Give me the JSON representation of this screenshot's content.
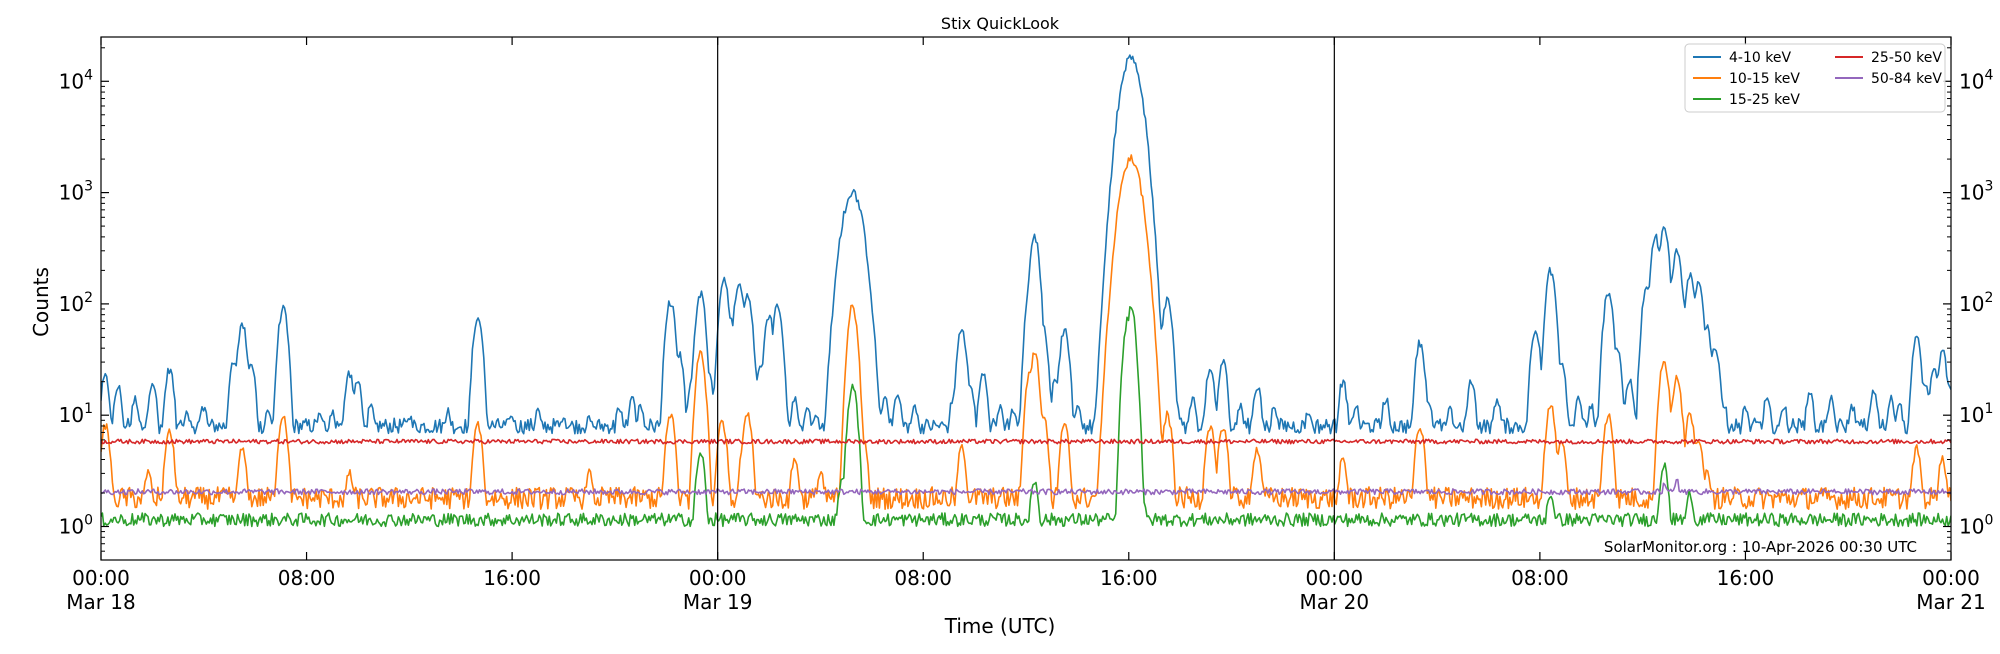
{
  "chart_data": {
    "type": "line",
    "title": "Stix QuickLook",
    "xlabel": "Time (UTC)",
    "ylabel": "Counts",
    "yscale": "log",
    "ylim": [
      0.5,
      25000
    ],
    "xlim": [
      "2026-03-18T00:00",
      "2026-03-21T00:00"
    ],
    "x_ticks": [
      {
        "x": "2026-03-18T00:00",
        "line1": "00:00",
        "line2": "Mar 18"
      },
      {
        "x": "2026-03-18T08:00",
        "line1": "08:00",
        "line2": ""
      },
      {
        "x": "2026-03-18T16:00",
        "line1": "16:00",
        "line2": ""
      },
      {
        "x": "2026-03-19T00:00",
        "line1": "00:00",
        "line2": "Mar 19"
      },
      {
        "x": "2026-03-19T08:00",
        "line1": "08:00",
        "line2": ""
      },
      {
        "x": "2026-03-19T16:00",
        "line1": "16:00",
        "line2": ""
      },
      {
        "x": "2026-03-20T00:00",
        "line1": "00:00",
        "line2": "Mar 20"
      },
      {
        "x": "2026-03-20T08:00",
        "line1": "08:00",
        "line2": ""
      },
      {
        "x": "2026-03-20T16:00",
        "line1": "16:00",
        "line2": ""
      },
      {
        "x": "2026-03-21T00:00",
        "line1": "00:00",
        "line2": "Mar 21"
      }
    ],
    "y_ticks": [
      {
        "value": 1,
        "base": "10",
        "exp": "0"
      },
      {
        "value": 10,
        "base": "10",
        "exp": "1"
      },
      {
        "value": 100,
        "base": "10",
        "exp": "2"
      },
      {
        "value": 1000,
        "base": "10",
        "exp": "3"
      },
      {
        "value": 10000,
        "base": "10",
        "exp": "4"
      }
    ],
    "day_separators": [
      "2026-03-19T00:00",
      "2026-03-20T00:00"
    ],
    "legend_position": "top-right",
    "grid": false,
    "annotation": "SolarMonitor.org : 10-Apr-2026 00:30 UTC",
    "series": [
      {
        "name": "4-10 keV",
        "color": "#1f77b4",
        "baseline": 8,
        "noise": 0.07,
        "points": [
          [
            "2026-03-18T00:10",
            22
          ],
          [
            "2026-03-18T00:40",
            18
          ],
          [
            "2026-03-18T01:20",
            14
          ],
          [
            "2026-03-18T02:00",
            20
          ],
          [
            "2026-03-18T02:40",
            26
          ],
          [
            "2026-03-18T03:20",
            11
          ],
          [
            "2026-03-18T04:00",
            12
          ],
          [
            "2026-03-18T05:10",
            30
          ],
          [
            "2026-03-18T05:30",
            65
          ],
          [
            "2026-03-18T05:50",
            30
          ],
          [
            "2026-03-18T06:30",
            11
          ],
          [
            "2026-03-18T07:05",
            90
          ],
          [
            "2026-03-18T08:30",
            10
          ],
          [
            "2026-03-18T09:00",
            11
          ],
          [
            "2026-03-18T09:40",
            24
          ],
          [
            "2026-03-18T10:00",
            20
          ],
          [
            "2026-03-18T10:30",
            12
          ],
          [
            "2026-03-18T12:00",
            10
          ],
          [
            "2026-03-18T13:30",
            11
          ],
          [
            "2026-03-18T14:40",
            75
          ],
          [
            "2026-03-18T16:00",
            10
          ],
          [
            "2026-03-18T17:00",
            11
          ],
          [
            "2026-03-18T18:00",
            10
          ],
          [
            "2026-03-18T19:00",
            10
          ],
          [
            "2026-03-18T20:10",
            12
          ],
          [
            "2026-03-18T20:40",
            14
          ],
          [
            "2026-03-18T21:00",
            12
          ],
          [
            "2026-03-18T22:10",
            105
          ],
          [
            "2026-03-18T22:30",
            35
          ],
          [
            "2026-03-18T23:00",
            20
          ],
          [
            "2026-03-18T23:20",
            125
          ],
          [
            "2026-03-18T23:40",
            22
          ],
          [
            "2026-03-19T00:30",
            12
          ],
          [
            "2026-03-19T01:00",
            14
          ],
          [
            "2026-03-19T02:00",
            80
          ],
          [
            "2026-03-19T02:20",
            100
          ],
          [
            "2026-03-19T03:00",
            14
          ],
          [
            "2026-03-19T03:30",
            12
          ],
          [
            "2026-03-19T00:15",
            170
          ],
          [
            "2026-03-19T00:30",
            70
          ],
          [
            "2026-03-19T00:50",
            160
          ],
          [
            "2026-03-19T01:10",
            120
          ],
          [
            "2026-03-19T01:40",
            30
          ],
          [
            "2026-03-19T03:50",
            10
          ],
          [
            "2026-03-19T04:20",
            12
          ],
          [
            "2026-03-19T05:00",
            20
          ],
          [
            "2026-03-19T05:15",
            1000
          ],
          [
            "2026-03-19T05:40",
            40
          ],
          [
            "2026-03-19T06:30",
            14
          ],
          [
            "2026-03-19T07:00",
            16
          ],
          [
            "2026-03-19T07:40",
            12
          ],
          [
            "2026-03-19T09:10",
            14
          ],
          [
            "2026-03-19T09:30",
            60
          ],
          [
            "2026-03-19T09:50",
            18
          ],
          [
            "2026-03-19T10:20",
            25
          ],
          [
            "2026-03-19T11:00",
            12
          ],
          [
            "2026-03-19T11:30",
            11
          ],
          [
            "2026-03-19T12:10",
            140
          ],
          [
            "2026-03-19T12:20",
            400
          ],
          [
            "2026-03-19T12:40",
            60
          ],
          [
            "2026-03-19T13:10",
            22
          ],
          [
            "2026-03-19T13:30",
            60
          ],
          [
            "2026-03-19T14:00",
            12
          ],
          [
            "2026-03-19T15:00",
            16
          ],
          [
            "2026-03-19T15:50",
            2000
          ],
          [
            "2026-03-19T16:00",
            8000
          ],
          [
            "2026-03-19T16:05",
            16000
          ],
          [
            "2026-03-19T16:15",
            3000
          ],
          [
            "2026-03-19T16:30",
            300
          ],
          [
            "2026-03-19T16:50",
            150
          ],
          [
            "2026-03-19T17:10",
            40
          ],
          [
            "2026-03-19T17:30",
            110
          ],
          [
            "2026-03-19T17:50",
            14
          ],
          [
            "2026-03-19T18:30",
            14
          ],
          [
            "2026-03-19T19:10",
            25
          ],
          [
            "2026-03-19T19:40",
            30
          ],
          [
            "2026-03-19T20:20",
            12
          ],
          [
            "2026-03-19T21:00",
            18
          ],
          [
            "2026-03-19T21:40",
            12
          ],
          [
            "2026-03-19T23:00",
            11
          ],
          [
            "2026-03-20T00:20",
            20
          ],
          [
            "2026-03-20T00:50",
            12
          ],
          [
            "2026-03-20T02:00",
            14
          ],
          [
            "2026-03-20T03:20",
            45
          ],
          [
            "2026-03-20T03:40",
            14
          ],
          [
            "2026-03-20T04:30",
            11
          ],
          [
            "2026-03-20T05:20",
            20
          ],
          [
            "2026-03-20T06:20",
            14
          ],
          [
            "2026-03-20T07:50",
            60
          ],
          [
            "2026-03-20T08:10",
            22
          ],
          [
            "2026-03-20T08:25",
            200
          ],
          [
            "2026-03-20T08:50",
            30
          ],
          [
            "2026-03-20T09:30",
            14
          ],
          [
            "2026-03-20T10:00",
            12
          ],
          [
            "2026-03-20T10:40",
            130
          ],
          [
            "2026-03-20T11:00",
            40
          ],
          [
            "2026-03-20T11:30",
            20
          ],
          [
            "2026-03-20T12:10",
            150
          ],
          [
            "2026-03-20T12:30",
            400
          ],
          [
            "2026-03-20T12:50",
            480
          ],
          [
            "2026-03-20T13:20",
            300
          ],
          [
            "2026-03-20T13:50",
            180
          ],
          [
            "2026-03-20T14:10",
            150
          ],
          [
            "2026-03-20T14:30",
            60
          ],
          [
            "2026-03-20T14:50",
            40
          ],
          [
            "2026-03-20T15:10",
            12
          ],
          [
            "2026-03-20T16:00",
            12
          ],
          [
            "2026-03-20T16:50",
            14
          ],
          [
            "2026-03-20T17:30",
            12
          ],
          [
            "2026-03-20T18:30",
            16
          ],
          [
            "2026-03-20T19:20",
            14
          ],
          [
            "2026-03-20T20:10",
            12
          ],
          [
            "2026-03-20T21:00",
            16
          ],
          [
            "2026-03-20T21:40",
            14
          ],
          [
            "2026-03-20T22:00",
            12
          ],
          [
            "2026-03-20T22:40",
            48
          ],
          [
            "2026-03-20T23:00",
            18
          ],
          [
            "2026-03-20T23:20",
            25
          ],
          [
            "2026-03-20T23:40",
            38
          ],
          [
            "2026-03-20T23:55",
            20
          ]
        ]
      },
      {
        "name": "10-15 keV",
        "color": "#ff7f0e",
        "baseline": 1.8,
        "noise": 0.1,
        "points": [
          [
            "2026-03-18T00:10",
            8
          ],
          [
            "2026-03-18T01:50",
            3
          ],
          [
            "2026-03-18T02:40",
            7
          ],
          [
            "2026-03-18T05:30",
            5
          ],
          [
            "2026-03-18T07:05",
            10
          ],
          [
            "2026-03-18T09:40",
            3
          ],
          [
            "2026-03-18T14:40",
            8
          ],
          [
            "2026-03-18T19:00",
            3
          ],
          [
            "2026-03-18T22:10",
            10
          ],
          [
            "2026-03-18T23:20",
            35
          ],
          [
            "2026-03-19T01:10",
            10
          ],
          [
            "2026-03-19T00:10",
            9
          ],
          [
            "2026-03-19T01:00",
            5
          ],
          [
            "2026-03-19T03:00",
            4
          ],
          [
            "2026-03-19T04:00",
            3
          ],
          [
            "2026-03-19T05:15",
            95
          ],
          [
            "2026-03-19T05:40",
            6
          ],
          [
            "2026-03-19T09:30",
            5
          ],
          [
            "2026-03-19T12:10",
            25
          ],
          [
            "2026-03-19T12:20",
            35
          ],
          [
            "2026-03-19T12:40",
            10
          ],
          [
            "2026-03-19T13:30",
            8
          ],
          [
            "2026-03-19T15:50",
            200
          ],
          [
            "2026-03-19T16:00",
            900
          ],
          [
            "2026-03-19T16:05",
            2000
          ],
          [
            "2026-03-19T16:15",
            400
          ],
          [
            "2026-03-19T16:30",
            40
          ],
          [
            "2026-03-19T16:50",
            15
          ],
          [
            "2026-03-19T17:30",
            10
          ],
          [
            "2026-03-19T19:10",
            8
          ],
          [
            "2026-03-19T19:40",
            8
          ],
          [
            "2026-03-19T21:00",
            5
          ],
          [
            "2026-03-20T00:20",
            4
          ],
          [
            "2026-03-20T03:20",
            8
          ],
          [
            "2026-03-20T08:25",
            12
          ],
          [
            "2026-03-20T08:50",
            6
          ],
          [
            "2026-03-20T10:40",
            10
          ],
          [
            "2026-03-20T12:50",
            30
          ],
          [
            "2026-03-20T13:20",
            22
          ],
          [
            "2026-03-20T13:50",
            10
          ],
          [
            "2026-03-20T14:10",
            6
          ],
          [
            "2026-03-20T14:30",
            3
          ],
          [
            "2026-03-20T22:40",
            5
          ],
          [
            "2026-03-20T23:40",
            4
          ]
        ]
      },
      {
        "name": "15-25 keV",
        "color": "#2ca02c",
        "baseline": 1.15,
        "noise": 0.06,
        "points": [
          [
            "2026-03-18T23:20",
            4.5
          ],
          [
            "2026-03-19T05:15",
            18
          ],
          [
            "2026-03-19T04:50",
            2.5
          ],
          [
            "2026-03-19T12:20",
            2.5
          ],
          [
            "2026-03-19T15:50",
            8
          ],
          [
            "2026-03-19T16:00",
            80
          ],
          [
            "2026-03-19T16:05",
            90
          ],
          [
            "2026-03-19T16:15",
            12
          ],
          [
            "2026-03-19T16:30",
            2
          ],
          [
            "2026-03-20T08:25",
            2
          ],
          [
            "2026-03-20T12:50",
            3.5
          ],
          [
            "2026-03-20T13:50",
            2
          ]
        ]
      },
      {
        "name": "25-50 keV",
        "color": "#d62728",
        "baseline": 5.8,
        "noise": 0.02,
        "points": []
      },
      {
        "name": "50-84 keV",
        "color": "#9467bd",
        "baseline": 2.05,
        "noise": 0.025,
        "points": [
          [
            "2026-03-20T12:50",
            2.4
          ],
          [
            "2026-03-20T13:20",
            2.5
          ],
          [
            "2026-03-20T13:50",
            2.3
          ]
        ]
      }
    ]
  }
}
